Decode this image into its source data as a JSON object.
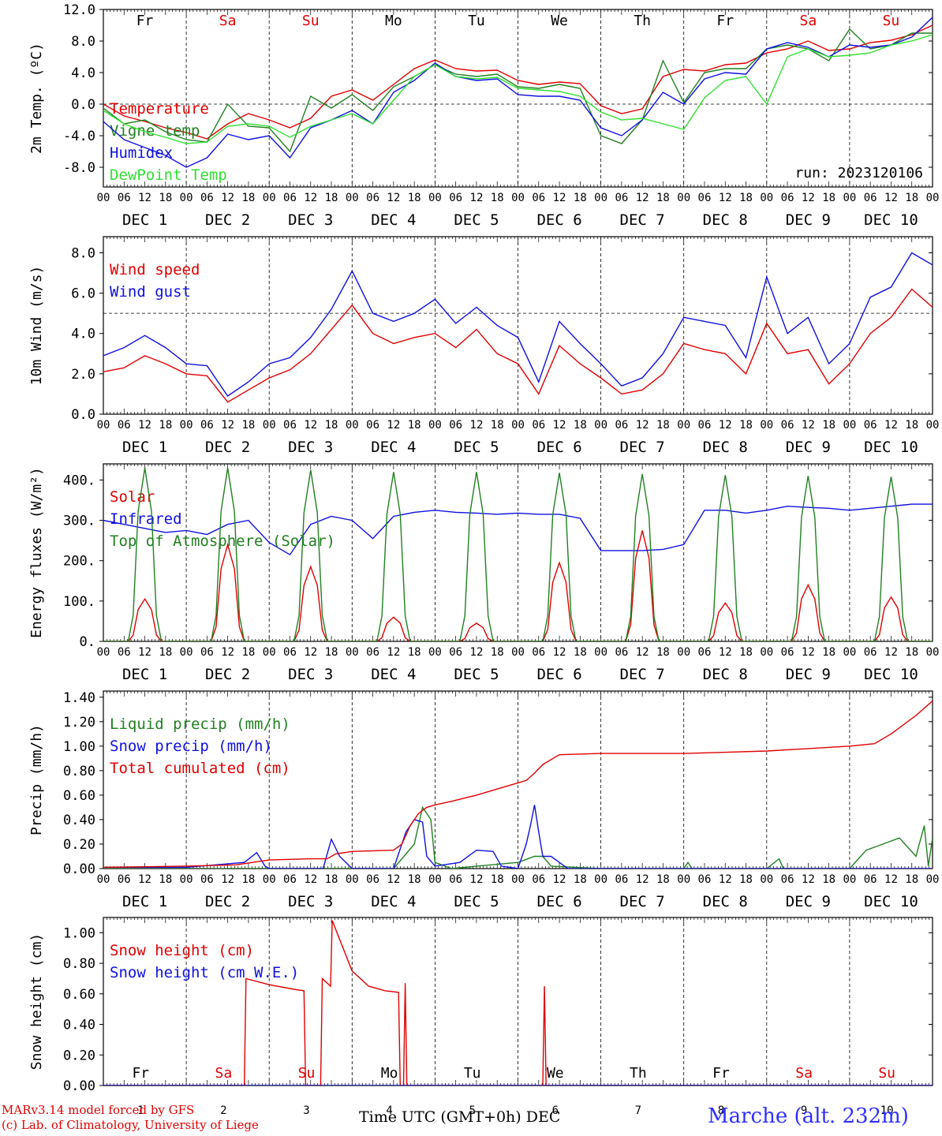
{
  "footer": {
    "model_line": "MARv3.14 model forced by GFS",
    "lab_line": "(c) Lab. of Climatology, University of Liege",
    "station": "Marche (alt. 232m)",
    "xlabel": "Time UTC (GMT+0h) DEC"
  },
  "colors": {
    "red": "#e00000",
    "green": "#208020",
    "blue": "#1010e0",
    "lightgreen": "#30e030",
    "weekend": "#e00000",
    "weekday": "#000000"
  },
  "days": [
    {
      "abbr": "Fr",
      "date": "DEC  1",
      "num": "1",
      "weekend": false
    },
    {
      "abbr": "Sa",
      "date": "DEC  2",
      "num": "2",
      "weekend": true
    },
    {
      "abbr": "Su",
      "date": "DEC  3",
      "num": "3",
      "weekend": true
    },
    {
      "abbr": "Mo",
      "date": "DEC  4",
      "num": "4",
      "weekend": false
    },
    {
      "abbr": "Tu",
      "date": "DEC  5",
      "num": "5",
      "weekend": false
    },
    {
      "abbr": "We",
      "date": "DEC  6",
      "num": "6",
      "weekend": false
    },
    {
      "abbr": "Th",
      "date": "DEC  7",
      "num": "7",
      "weekend": false
    },
    {
      "abbr": "Fr",
      "date": "DEC  8",
      "num": "8",
      "weekend": false
    },
    {
      "abbr": "Sa",
      "date": "DEC  9",
      "num": "9",
      "weekend": true
    },
    {
      "abbr": "Su",
      "date": "DEC 10",
      "num": "10",
      "weekend": true
    }
  ],
  "hour_ticks": [
    "00",
    "06",
    "12",
    "18"
  ],
  "end_tick": "00",
  "chart_data": [
    {
      "type": "line",
      "ylabel": "2m Temp. (ºC)",
      "ylim": [
        -10.5,
        12
      ],
      "yticks": [
        "12.0",
        "8.0",
        "4.0",
        "0.0",
        "-4.0",
        "-8.0"
      ],
      "ytick_values": [
        12,
        8,
        4,
        0,
        -4,
        -8
      ],
      "ref_line": 0,
      "run_label": "run: 2023120106",
      "legend": "top-left",
      "x_unit": "days from DEC 1 00 UTC",
      "series": [
        {
          "name": "Temperature",
          "color_key": "red",
          "x": [
            0,
            0.25,
            0.5,
            0.75,
            1,
            1.25,
            1.5,
            1.75,
            2,
            2.25,
            2.5,
            2.75,
            3,
            3.25,
            3.5,
            3.75,
            4,
            4.25,
            4.5,
            4.75,
            5,
            5.25,
            5.5,
            5.75,
            6,
            6.25,
            6.5,
            6.75,
            7,
            7.25,
            7.5,
            7.75,
            8,
            8.25,
            8.5,
            8.75,
            9,
            9.25,
            9.5,
            9.75,
            10
          ],
          "y": [
            0,
            -1.5,
            -2.2,
            -3.0,
            -3.6,
            -4.4,
            -2.5,
            -1.2,
            -2.0,
            -3.0,
            -1.8,
            1.0,
            1.8,
            0.5,
            2.5,
            4.5,
            5.6,
            4.5,
            4.2,
            4.3,
            3.0,
            2.5,
            2.8,
            2.6,
            -0.2,
            -1.2,
            -0.6,
            3.5,
            4.4,
            4.2,
            5.0,
            5.2,
            6.5,
            7.0,
            8.0,
            6.8,
            7.0,
            7.8,
            8.1,
            8.8,
            10.0
          ]
        },
        {
          "name": "Vigne temp",
          "color_key": "green",
          "x": [
            0,
            0.25,
            0.5,
            0.75,
            1,
            1.25,
            1.5,
            1.75,
            2,
            2.25,
            2.5,
            2.75,
            3,
            3.25,
            3.5,
            3.75,
            4,
            4.25,
            4.5,
            4.75,
            5,
            5.25,
            5.5,
            5.75,
            6,
            6.25,
            6.5,
            6.75,
            7,
            7.25,
            7.5,
            7.75,
            8,
            8.25,
            8.5,
            8.75,
            9,
            9.25,
            9.5,
            9.75,
            10
          ],
          "y": [
            -0.5,
            -2.5,
            -2.0,
            -3.5,
            -4.5,
            -4.8,
            0.0,
            -2.8,
            -3.0,
            -6.0,
            1.0,
            -0.5,
            1.2,
            -0.8,
            2.2,
            3.5,
            5.0,
            3.8,
            3.5,
            3.8,
            2.2,
            2.0,
            2.5,
            2.0,
            -4.0,
            -5.0,
            -2.0,
            5.5,
            0.2,
            4.0,
            4.5,
            4.5,
            7.0,
            7.5,
            7.0,
            5.5,
            9.5,
            7.0,
            7.5,
            9.0,
            9.0
          ]
        },
        {
          "name": "Humidex",
          "color_key": "blue",
          "x": [
            0,
            0.25,
            0.5,
            0.75,
            1,
            1.25,
            1.5,
            1.75,
            2,
            2.25,
            2.5,
            2.75,
            3,
            3.25,
            3.5,
            3.75,
            4,
            4.25,
            4.5,
            4.75,
            5,
            5.25,
            5.5,
            5.75,
            6,
            6.25,
            6.5,
            6.75,
            7,
            7.25,
            7.5,
            7.75,
            8,
            8.25,
            8.5,
            8.75,
            9,
            9.25,
            9.5,
            9.75,
            10
          ],
          "y": [
            -2.2,
            -4.5,
            -5.5,
            -6.5,
            -8.0,
            -6.8,
            -3.8,
            -4.5,
            -4.0,
            -6.8,
            -3.0,
            -2.0,
            -0.8,
            -2.5,
            1.5,
            3.0,
            5.2,
            3.5,
            3.0,
            3.2,
            1.2,
            1.0,
            1.0,
            0.5,
            -3.0,
            -4.0,
            -2.0,
            1.5,
            0.0,
            3.2,
            4.0,
            3.8,
            7.0,
            7.8,
            7.2,
            6.0,
            7.5,
            7.2,
            7.5,
            8.5,
            11.0
          ]
        },
        {
          "name": "DewPoint Temp",
          "color_key": "lightgreen",
          "x": [
            0,
            0.25,
            0.5,
            0.75,
            1,
            1.25,
            1.5,
            1.75,
            2,
            2.25,
            2.5,
            2.75,
            3,
            3.25,
            3.5,
            3.75,
            4,
            4.25,
            4.5,
            4.75,
            5,
            5.25,
            5.5,
            5.75,
            6,
            6.25,
            6.5,
            6.75,
            7,
            7.25,
            7.5,
            7.75,
            8,
            8.25,
            8.5,
            8.75,
            9,
            9.25,
            9.5,
            9.75,
            10
          ],
          "y": [
            -0.8,
            -2.5,
            -3.5,
            -4.2,
            -5.0,
            -4.8,
            -2.8,
            -2.5,
            -2.8,
            -4.2,
            -2.8,
            -2.0,
            -1.2,
            -2.5,
            0.5,
            3.5,
            5.0,
            3.5,
            3.2,
            3.4,
            2.0,
            1.8,
            1.6,
            1.0,
            -1.0,
            -2.0,
            -1.8,
            -2.5,
            -3.2,
            0.8,
            3.0,
            3.5,
            0.0,
            6.0,
            7.0,
            6.0,
            6.2,
            6.5,
            7.5,
            8.0,
            8.8
          ]
        }
      ]
    },
    {
      "type": "line",
      "ylabel": "10m Wind (m/s)",
      "ylim": [
        0,
        8.8
      ],
      "yticks": [
        "8.0",
        "6.0",
        "4.0",
        "2.0",
        "0.0"
      ],
      "ytick_values": [
        8,
        6,
        4,
        2,
        0
      ],
      "ref_line": 5,
      "legend": "top-left",
      "series": [
        {
          "name": "Wind speed",
          "color_key": "red",
          "x": [
            0,
            0.25,
            0.5,
            0.75,
            1,
            1.25,
            1.5,
            1.75,
            2,
            2.25,
            2.5,
            2.75,
            3,
            3.25,
            3.5,
            3.75,
            4,
            4.25,
            4.5,
            4.75,
            5,
            5.25,
            5.5,
            5.75,
            6,
            6.25,
            6.5,
            6.75,
            7,
            7.25,
            7.5,
            7.75,
            8,
            8.25,
            8.5,
            8.75,
            9,
            9.25,
            9.5,
            9.75,
            10
          ],
          "y": [
            2.1,
            2.3,
            2.9,
            2.5,
            2.0,
            1.9,
            0.6,
            1.2,
            1.8,
            2.2,
            3.0,
            4.2,
            5.4,
            4.0,
            3.5,
            3.8,
            4.0,
            3.3,
            4.2,
            3.0,
            2.5,
            1.0,
            3.4,
            2.5,
            1.8,
            1.0,
            1.2,
            2.0,
            3.5,
            3.2,
            3.0,
            2.0,
            4.5,
            3.0,
            3.2,
            1.5,
            2.5,
            4.0,
            4.8,
            6.2,
            5.3
          ]
        },
        {
          "name": "Wind gust",
          "color_key": "blue",
          "x": [
            0,
            0.25,
            0.5,
            0.75,
            1,
            1.25,
            1.5,
            1.75,
            2,
            2.25,
            2.5,
            2.75,
            3,
            3.25,
            3.5,
            3.75,
            4,
            4.25,
            4.5,
            4.75,
            5,
            5.25,
            5.5,
            5.75,
            6,
            6.25,
            6.5,
            6.75,
            7,
            7.25,
            7.5,
            7.75,
            8,
            8.25,
            8.5,
            8.75,
            9,
            9.25,
            9.5,
            9.75,
            10
          ],
          "y": [
            2.9,
            3.3,
            3.9,
            3.3,
            2.5,
            2.4,
            0.9,
            1.6,
            2.5,
            2.8,
            3.8,
            5.2,
            7.1,
            5.0,
            4.6,
            5.0,
            5.7,
            4.5,
            5.3,
            4.4,
            3.8,
            1.6,
            4.6,
            3.5,
            2.5,
            1.4,
            1.8,
            3.0,
            4.8,
            4.6,
            4.4,
            2.8,
            6.8,
            4.0,
            4.8,
            2.5,
            3.5,
            5.8,
            6.3,
            8.0,
            7.4
          ]
        }
      ]
    },
    {
      "type": "line",
      "ylabel": "Energy fluxes (W/m²)",
      "ylim": [
        0,
        440
      ],
      "yticks": [
        "400.",
        "300.",
        "200.",
        "100.",
        "0."
      ],
      "ytick_values": [
        400,
        300,
        200,
        100,
        0
      ],
      "legend": "top-left",
      "series": [
        {
          "name": "Solar",
          "color_key": "red",
          "peaks": [
            105,
            240,
            185,
            60,
            45,
            195,
            275,
            95,
            140,
            110
          ]
        },
        {
          "name": "Infrared",
          "color_key": "blue",
          "x": [
            0,
            0.25,
            0.5,
            0.75,
            1,
            1.25,
            1.5,
            1.75,
            2,
            2.25,
            2.5,
            2.75,
            3,
            3.25,
            3.5,
            3.75,
            4,
            4.25,
            4.5,
            4.75,
            5,
            5.25,
            5.5,
            5.75,
            6,
            6.25,
            6.5,
            6.75,
            7,
            7.25,
            7.5,
            7.75,
            8,
            8.25,
            8.5,
            8.75,
            9,
            9.25,
            9.5,
            9.75,
            10
          ],
          "y": [
            300,
            290,
            280,
            270,
            275,
            265,
            290,
            300,
            245,
            215,
            290,
            310,
            300,
            255,
            310,
            320,
            325,
            320,
            318,
            315,
            318,
            315,
            315,
            305,
            225,
            225,
            225,
            228,
            240,
            325,
            325,
            318,
            325,
            335,
            332,
            330,
            325,
            330,
            335,
            340,
            340
          ]
        },
        {
          "name": "Top of Atmosphere (Solar)",
          "color_key": "green",
          "peaks": [
            430,
            430,
            425,
            420,
            420,
            418,
            415,
            412,
            410,
            408
          ]
        }
      ]
    },
    {
      "type": "line",
      "ylabel": "Precip (mm/h)",
      "ylim": [
        0,
        1.45
      ],
      "yticks": [
        "1.40",
        "1.20",
        "1.00",
        "0.80",
        "0.60",
        "0.40",
        "0.20",
        "0.00"
      ],
      "ytick_values": [
        1.4,
        1.2,
        1.0,
        0.8,
        0.6,
        0.4,
        0.2,
        0.0
      ],
      "legend": "top-left",
      "series": [
        {
          "name": "Liquid precip (mm/h)",
          "color_key": "green",
          "x": [
            0,
            1,
            1.8,
            2,
            3.5,
            3.75,
            3.85,
            3.95,
            4.0,
            4.2,
            5.0,
            5.2,
            5.3,
            5.4,
            6,
            7,
            7.05,
            7.1,
            8,
            8.15,
            8.2,
            8.3,
            9,
            9.2,
            9.4,
            9.6,
            9.8,
            9.9,
            9.95,
            10
          ],
          "y": [
            0,
            0,
            0,
            0,
            0,
            0.2,
            0.5,
            0.4,
            0.05,
            0,
            0.05,
            0.1,
            0.1,
            0.02,
            0,
            0,
            0.05,
            0,
            0,
            0.08,
            0,
            0,
            0,
            0.15,
            0.2,
            0.25,
            0.1,
            0.35,
            0.02,
            0.25
          ]
        },
        {
          "name": "Snow precip (mm/h)",
          "color_key": "blue",
          "x": [
            0,
            1,
            1.7,
            1.85,
            1.95,
            2.0,
            2.65,
            2.75,
            2.85,
            3.0,
            3.5,
            3.65,
            3.75,
            3.85,
            3.9,
            4.0,
            4.3,
            4.5,
            4.7,
            4.8,
            5.0,
            5.1,
            5.15,
            5.2,
            5.25,
            5.3,
            5.4,
            5.5,
            5.6,
            6,
            10
          ],
          "y": [
            0.01,
            0.01,
            0.05,
            0.13,
            0.02,
            0,
            0,
            0.24,
            0.1,
            0,
            0,
            0.3,
            0.4,
            0.38,
            0.1,
            0.02,
            0.05,
            0.15,
            0.14,
            0.02,
            0,
            0.2,
            0.35,
            0.52,
            0.3,
            0.1,
            0.1,
            0.05,
            0,
            0,
            0
          ]
        },
        {
          "name": "Total cumulated (cm)",
          "color_key": "red",
          "x": [
            0,
            1,
            1.6,
            1.8,
            2.0,
            2.5,
            2.7,
            2.8,
            3.0,
            3.5,
            3.6,
            3.7,
            3.8,
            3.9,
            4.0,
            4.2,
            4.5,
            4.8,
            5.0,
            5.1,
            5.2,
            5.3,
            5.5,
            6,
            7,
            7.5,
            8,
            8.5,
            9,
            9.3,
            9.5,
            9.8,
            10
          ],
          "y": [
            0.01,
            0.02,
            0.03,
            0.05,
            0.07,
            0.08,
            0.08,
            0.12,
            0.14,
            0.15,
            0.2,
            0.35,
            0.45,
            0.5,
            0.52,
            0.55,
            0.6,
            0.66,
            0.7,
            0.72,
            0.78,
            0.85,
            0.93,
            0.94,
            0.94,
            0.95,
            0.96,
            0.98,
            1.0,
            1.02,
            1.1,
            1.25,
            1.37
          ]
        }
      ]
    },
    {
      "type": "line",
      "ylabel": "Snow height (cm)",
      "ylim": [
        0,
        1.1
      ],
      "yticks": [
        "1.00",
        "0.80",
        "0.60",
        "0.40",
        "0.20",
        "0.00"
      ],
      "ytick_values": [
        1.0,
        0.8,
        0.6,
        0.4,
        0.2,
        0.0
      ],
      "legend": "top-left",
      "series": [
        {
          "name": "Snow height (cm)",
          "color_key": "red",
          "x": [
            0,
            1.7,
            1.72,
            2.0,
            2.3,
            2.42,
            2.44,
            2.62,
            2.64,
            2.74,
            2.76,
            3.0,
            3.2,
            3.4,
            3.56,
            3.58,
            3.62,
            3.64,
            3.66,
            3.68,
            4.0,
            4.02,
            4.06,
            4.08,
            4.1,
            5.3,
            5.32,
            5.34,
            5.36,
            10
          ],
          "y": [
            0,
            0,
            0.7,
            0.66,
            0.63,
            0.62,
            0,
            0,
            0.7,
            0.65,
            1.08,
            0.75,
            0.65,
            0.62,
            0.61,
            0,
            0,
            0.67,
            0,
            0,
            0,
            0,
            0,
            0,
            0,
            0,
            0.65,
            0,
            0,
            0
          ]
        },
        {
          "name": "Snow height (cm W.E.)",
          "color_key": "blue",
          "x": [
            0,
            10
          ],
          "y": [
            0,
            0
          ]
        }
      ]
    }
  ]
}
